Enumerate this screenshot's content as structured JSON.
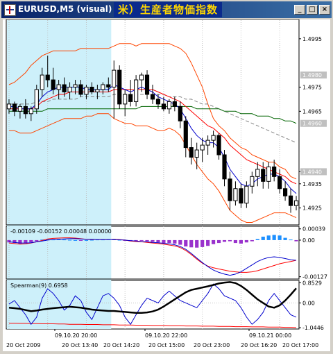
{
  "window": {
    "title": "EURUSD,M5 (visual)",
    "title_banner": "米）生産者物価指数",
    "controls": [
      "_",
      "□",
      "×"
    ]
  },
  "colors": {
    "background": "#ffffff",
    "tester_highlight": "#cdf0fa",
    "grid": "#c0c0c0",
    "candle": "#000000",
    "bollinger_outer": "#ff4500",
    "bollinger_mid": "#b22222",
    "ma_fast": "#0000cd",
    "ma_mid": "#ff0000",
    "ma_slow": "#006400",
    "ma_dash": "#808080",
    "macd_hist_pos": "#1e90ff",
    "macd_hist_neg": "#9932cc",
    "macd_signal_1": "#ff0000",
    "macd_signal_2": "#0000cd",
    "spearman_bold": "#000000",
    "spearman_thin": "#0000cd",
    "spearman_red": "#ff0000"
  },
  "main_chart": {
    "price_labels": [
      "1.4995",
      "1.4975",
      "1.4965",
      "1.4940",
      "1.4935",
      "1.4925"
    ],
    "price_label_values": [
      1.4995,
      1.4975,
      1.4965,
      1.494,
      1.4935,
      1.4925
    ],
    "extra_ticks": [
      {
        "label": "1.4980",
        "value": 1.498,
        "box": true
      },
      {
        "label": "1.4960",
        "value": 1.496,
        "box": true
      },
      {
        "label": "1.4940",
        "value": 1.494,
        "box": true
      }
    ],
    "ylim": [
      1.4918,
      1.5003
    ]
  },
  "chart_data": {
    "type": "candlestick",
    "highlight_bars": [
      0,
      18
    ],
    "candles": [
      {
        "o": 1.4966,
        "h": 1.497,
        "l": 1.4964,
        "c": 1.4968
      },
      {
        "o": 1.4968,
        "h": 1.4969,
        "l": 1.4963,
        "c": 1.4965
      },
      {
        "o": 1.4965,
        "h": 1.4968,
        "l": 1.4962,
        "c": 1.4967
      },
      {
        "o": 1.4967,
        "h": 1.497,
        "l": 1.4962,
        "c": 1.4964
      },
      {
        "o": 1.4964,
        "h": 1.4967,
        "l": 1.4961,
        "c": 1.4966
      },
      {
        "o": 1.4966,
        "h": 1.4976,
        "l": 1.4964,
        "c": 1.4974
      },
      {
        "o": 1.4974,
        "h": 1.4983,
        "l": 1.4971,
        "c": 1.498
      },
      {
        "o": 1.498,
        "h": 1.4988,
        "l": 1.4975,
        "c": 1.4978
      },
      {
        "o": 1.4978,
        "h": 1.4983,
        "l": 1.4972,
        "c": 1.4974
      },
      {
        "o": 1.4974,
        "h": 1.4978,
        "l": 1.497,
        "c": 1.4976
      },
      {
        "o": 1.4976,
        "h": 1.4979,
        "l": 1.4971,
        "c": 1.4973
      },
      {
        "o": 1.4973,
        "h": 1.4977,
        "l": 1.497,
        "c": 1.4975
      },
      {
        "o": 1.4975,
        "h": 1.4978,
        "l": 1.4972,
        "c": 1.4976
      },
      {
        "o": 1.4976,
        "h": 1.4978,
        "l": 1.4971,
        "c": 1.4972
      },
      {
        "o": 1.4972,
        "h": 1.4976,
        "l": 1.497,
        "c": 1.4975
      },
      {
        "o": 1.4975,
        "h": 1.4977,
        "l": 1.4972,
        "c": 1.4973
      },
      {
        "o": 1.4973,
        "h": 1.4976,
        "l": 1.497,
        "c": 1.4974
      },
      {
        "o": 1.4974,
        "h": 1.4977,
        "l": 1.4972,
        "c": 1.4976
      },
      {
        "o": 1.4976,
        "h": 1.4979,
        "l": 1.4973,
        "c": 1.4975
      },
      {
        "o": 1.4975,
        "h": 1.4986,
        "l": 1.4962,
        "c": 1.4982
      },
      {
        "o": 1.4982,
        "h": 1.4984,
        "l": 1.4966,
        "c": 1.4968
      },
      {
        "o": 1.4968,
        "h": 1.4974,
        "l": 1.4963,
        "c": 1.4972
      },
      {
        "o": 1.4972,
        "h": 1.4978,
        "l": 1.4967,
        "c": 1.4969
      },
      {
        "o": 1.4969,
        "h": 1.498,
        "l": 1.4967,
        "c": 1.4978
      },
      {
        "o": 1.4978,
        "h": 1.4981,
        "l": 1.4973,
        "c": 1.498
      },
      {
        "o": 1.498,
        "h": 1.4982,
        "l": 1.497,
        "c": 1.4972
      },
      {
        "o": 1.4972,
        "h": 1.4976,
        "l": 1.4968,
        "c": 1.497
      },
      {
        "o": 1.497,
        "h": 1.4972,
        "l": 1.4966,
        "c": 1.4968
      },
      {
        "o": 1.4968,
        "h": 1.4971,
        "l": 1.4965,
        "c": 1.4966
      },
      {
        "o": 1.4966,
        "h": 1.497,
        "l": 1.4964,
        "c": 1.4969
      },
      {
        "o": 1.4969,
        "h": 1.4971,
        "l": 1.4965,
        "c": 1.4967
      },
      {
        "o": 1.4967,
        "h": 1.4969,
        "l": 1.4958,
        "c": 1.4961
      },
      {
        "o": 1.4961,
        "h": 1.4963,
        "l": 1.4946,
        "c": 1.495
      },
      {
        "o": 1.495,
        "h": 1.4954,
        "l": 1.4943,
        "c": 1.4946
      },
      {
        "o": 1.4946,
        "h": 1.4952,
        "l": 1.4941,
        "c": 1.4949
      },
      {
        "o": 1.4949,
        "h": 1.4954,
        "l": 1.4944,
        "c": 1.4951
      },
      {
        "o": 1.4951,
        "h": 1.4955,
        "l": 1.4947,
        "c": 1.4953
      },
      {
        "o": 1.4953,
        "h": 1.4957,
        "l": 1.495,
        "c": 1.4955
      },
      {
        "o": 1.4955,
        "h": 1.4956,
        "l": 1.4945,
        "c": 1.4947
      },
      {
        "o": 1.4947,
        "h": 1.4949,
        "l": 1.4934,
        "c": 1.4937
      },
      {
        "o": 1.4937,
        "h": 1.494,
        "l": 1.4924,
        "c": 1.4928
      },
      {
        "o": 1.4928,
        "h": 1.4936,
        "l": 1.4926,
        "c": 1.4933
      },
      {
        "o": 1.4933,
        "h": 1.4935,
        "l": 1.4925,
        "c": 1.4927
      },
      {
        "o": 1.4927,
        "h": 1.4936,
        "l": 1.4925,
        "c": 1.4934
      },
      {
        "o": 1.4934,
        "h": 1.494,
        "l": 1.4931,
        "c": 1.4938
      },
      {
        "o": 1.4938,
        "h": 1.4944,
        "l": 1.4934,
        "c": 1.4941
      },
      {
        "o": 1.4941,
        "h": 1.4944,
        "l": 1.4933,
        "c": 1.4936
      },
      {
        "o": 1.4936,
        "h": 1.4944,
        "l": 1.4933,
        "c": 1.4942
      },
      {
        "o": 1.4942,
        "h": 1.4945,
        "l": 1.4936,
        "c": 1.4938
      },
      {
        "o": 1.4938,
        "h": 1.4941,
        "l": 1.4931,
        "c": 1.4933
      },
      {
        "o": 1.4933,
        "h": 1.4936,
        "l": 1.4928,
        "c": 1.493
      },
      {
        "o": 1.493,
        "h": 1.4933,
        "l": 1.4923,
        "c": 1.4926
      },
      {
        "o": 1.4926,
        "h": 1.493,
        "l": 1.4924,
        "c": 1.4928
      }
    ],
    "bollinger": {
      "upper": [
        1.4976,
        1.4977,
        1.4979,
        1.4981,
        1.4984,
        1.4986,
        1.4988,
        1.4989,
        1.499,
        1.499,
        1.499,
        1.499,
        1.499,
        1.4991,
        1.4991,
        1.4991,
        1.4991,
        1.4991,
        1.4991,
        1.4992,
        1.4993,
        1.4993,
        1.4993,
        1.4992,
        1.4993,
        1.4993,
        1.4993,
        1.4993,
        1.4993,
        1.4993,
        1.4992,
        1.4991,
        1.4989,
        1.4985,
        1.498,
        1.4975,
        1.4968,
        1.4962,
        1.4959,
        1.4957,
        1.4954,
        1.4952,
        1.495,
        1.4949,
        1.4947,
        1.4946,
        1.4945,
        1.4944,
        1.4944,
        1.4942,
        1.4941,
        1.4938,
        1.4937
      ],
      "lower": [
        1.4957,
        1.4957,
        1.4956,
        1.4956,
        1.4956,
        1.4957,
        1.4958,
        1.4959,
        1.496,
        1.4961,
        1.4962,
        1.4962,
        1.4962,
        1.4962,
        1.4963,
        1.4963,
        1.4964,
        1.4964,
        1.4964,
        1.4962,
        1.4961,
        1.496,
        1.496,
        1.4959,
        1.4959,
        1.4959,
        1.4958,
        1.4957,
        1.4957,
        1.4958,
        1.4957,
        1.4955,
        1.4951,
        1.4947,
        1.4943,
        1.494,
        1.4937,
        1.4935,
        1.4932,
        1.4928,
        1.4924,
        1.4922,
        1.492,
        1.4919,
        1.4919,
        1.492,
        1.4921,
        1.4922,
        1.4923,
        1.4923,
        1.4923,
        1.4922,
        1.4921
      ]
    },
    "ma": {
      "fast": [
        1.4967,
        1.4967,
        1.4966,
        1.4966,
        1.4966,
        1.4968,
        1.4971,
        1.4973,
        1.4974,
        1.4975,
        1.4975,
        1.4975,
        1.4975,
        1.4975,
        1.4974,
        1.4974,
        1.4974,
        1.4974,
        1.4974,
        1.4976,
        1.4975,
        1.4974,
        1.4973,
        1.4974,
        1.4975,
        1.4974,
        1.4973,
        1.4971,
        1.497,
        1.4969,
        1.4968,
        1.4966,
        1.4962,
        1.4958,
        1.4955,
        1.4953,
        1.4952,
        1.4952,
        1.495,
        1.4946,
        1.4941,
        1.4938,
        1.4935,
        1.4934,
        1.4935,
        1.4937,
        1.4938,
        1.4939,
        1.4939,
        1.4938,
        1.4936,
        1.4933,
        1.4931
      ],
      "mid": [
        1.4966,
        1.4966,
        1.4966,
        1.4966,
        1.4966,
        1.4967,
        1.4969,
        1.497,
        1.4971,
        1.4972,
        1.4972,
        1.4973,
        1.4973,
        1.4973,
        1.4973,
        1.4973,
        1.4973,
        1.4973,
        1.4973,
        1.4974,
        1.4974,
        1.4974,
        1.4974,
        1.4974,
        1.4974,
        1.4974,
        1.4974,
        1.4973,
        1.4972,
        1.4971,
        1.497,
        1.4969,
        1.4967,
        1.4965,
        1.4963,
        1.4961,
        1.4959,
        1.4958,
        1.4956,
        1.4954,
        1.4951,
        1.4949,
        1.4947,
        1.4945,
        1.4944,
        1.4943,
        1.4942,
        1.4941,
        1.494,
        1.4939,
        1.4938,
        1.4936,
        1.4935
      ],
      "slow": [
        1.4965,
        1.4965,
        1.4965,
        1.4965,
        1.4965,
        1.4965,
        1.4965,
        1.4966,
        1.4966,
        1.4966,
        1.4966,
        1.4966,
        1.4966,
        1.4966,
        1.4966,
        1.4966,
        1.4966,
        1.4966,
        1.4966,
        1.4966,
        1.4966,
        1.4966,
        1.4966,
        1.4966,
        1.4967,
        1.4967,
        1.4967,
        1.4967,
        1.4967,
        1.4967,
        1.4967,
        1.4967,
        1.4967,
        1.4967,
        1.4966,
        1.4966,
        1.4966,
        1.4966,
        1.4966,
        1.4965,
        1.4965,
        1.4965,
        1.4964,
        1.4964,
        1.4964,
        1.4963,
        1.4963,
        1.4963,
        1.4962,
        1.4962,
        1.4961,
        1.4961,
        1.496
      ],
      "dash": [
        1.4968,
        1.4968,
        1.4968,
        1.4968,
        1.4968,
        1.4969,
        1.4969,
        1.4969,
        1.497,
        1.497,
        1.497,
        1.497,
        1.497,
        1.4971,
        1.4971,
        1.4971,
        1.4971,
        1.4971,
        1.4971,
        1.4972,
        1.4972,
        1.4972,
        1.4972,
        1.4972,
        1.4972,
        1.4972,
        1.4972,
        1.4972,
        1.4972,
        1.4971,
        1.4971,
        1.4971,
        1.497,
        1.497,
        1.4969,
        1.4968,
        1.4968,
        1.4967,
        1.4966,
        1.4965,
        1.4964,
        1.4963,
        1.4962,
        1.4961,
        1.496,
        1.4959,
        1.4958,
        1.4957,
        1.4956,
        1.4955,
        1.4954,
        1.4953,
        1.4952
      ]
    },
    "macd": {
      "label": "-0.00109 -0.00152 0.00048 0.00000",
      "ticks": [
        {
          "label": "0.00039",
          "value": 0.00039
        },
        {
          "label": "0.00",
          "value": 0.0
        },
        {
          "label": "-0.00127",
          "value": -0.00127
        }
      ],
      "ylim": [
        -0.00135,
        0.00048
      ],
      "hist": [
        -8e-05,
        -0.0001,
        -0.00012,
        -0.0001,
        -8e-05,
        -4e-05,
        2e-05,
        3e-05,
        2e-05,
        3e-05,
        2e-05,
        1e-05,
        0.0,
        -1e-05,
        0.0,
        1e-05,
        2e-05,
        2e-05,
        3e-05,
        4e-05,
        1e-05,
        -2e-05,
        -4e-05,
        -3e-05,
        -2e-05,
        -4e-05,
        -6e-05,
        -8e-05,
        -0.0001,
        -0.0001,
        -0.00012,
        -0.00016,
        -0.00022,
        -0.00025,
        -0.00026,
        -0.00024,
        -0.0002,
        -0.00014,
        -0.0001,
        -6e-05,
        -4e-05,
        -0.0001,
        -0.00012,
        -8e-05,
        -4e-05,
        4e-05,
        0.00012,
        0.00016,
        0.00018,
        0.00016,
        8e-05,
        2e-05,
        -4e-05
      ],
      "signal1": [
        -0.0001,
        -0.00012,
        -0.00014,
        -0.00013,
        -0.0001,
        -6e-05,
        -1e-05,
        4e-05,
        6e-05,
        7e-05,
        8e-05,
        8e-05,
        7e-05,
        5e-05,
        3e-05,
        2e-05,
        2e-05,
        2e-05,
        2e-05,
        3e-05,
        2e-05,
        0.0,
        -3e-05,
        -5e-05,
        -6e-05,
        -8e-05,
        -0.0001,
        -0.00012,
        -0.00014,
        -0.00017,
        -0.0002,
        -0.00026,
        -0.00036,
        -0.0005,
        -0.00066,
        -0.0008,
        -0.0009,
        -0.00096,
        -0.001,
        -0.00104,
        -0.00108,
        -0.0011,
        -0.00112,
        -0.00112,
        -0.0011,
        -0.00106,
        -0.001,
        -0.00094,
        -0.00088,
        -0.00082,
        -0.00078,
        -0.00074,
        -0.0007
      ],
      "signal2": [
        -6e-05,
        -8e-05,
        -0.0001,
        -0.0001,
        -9e-05,
        -6e-05,
        -3e-05,
        0.0,
        2e-05,
        3e-05,
        4e-05,
        5e-05,
        5e-05,
        4e-05,
        3e-05,
        3e-05,
        2e-05,
        2e-05,
        2e-05,
        2e-05,
        1e-05,
        0.0,
        -2e-05,
        -3e-05,
        -5e-05,
        -6e-05,
        -8e-05,
        -9e-05,
        -0.00011,
        -0.00013,
        -0.00016,
        -0.00022,
        -0.00032,
        -0.00046,
        -0.00062,
        -0.00078,
        -0.00092,
        -0.00104,
        -0.00112,
        -0.00118,
        -0.00122,
        -0.00118,
        -0.0011,
        -0.00098,
        -0.00086,
        -0.00074,
        -0.00066,
        -0.0006,
        -0.00058,
        -0.0006,
        -0.00064,
        -0.00068,
        -0.0007
      ]
    },
    "spearman": {
      "label": "Spearman(9) 0.6958",
      "ticks": [
        {
          "label": "0.8529",
          "value": 0.8529
        },
        {
          "label": "0.00",
          "value": 0.0
        },
        {
          "label": "-1.0446",
          "value": -1.0446
        }
      ],
      "ylim": [
        -1.1,
        0.95
      ],
      "bold": [
        -0.2,
        -0.22,
        -0.25,
        -0.3,
        -0.35,
        -0.32,
        -0.28,
        -0.25,
        -0.22,
        -0.2,
        -0.18,
        -0.16,
        -0.18,
        -0.2,
        -0.24,
        -0.28,
        -0.3,
        -0.32,
        -0.34,
        -0.34,
        -0.36,
        -0.38,
        -0.4,
        -0.42,
        -0.42,
        -0.4,
        -0.36,
        -0.28,
        -0.15,
        0.0,
        0.15,
        0.3,
        0.45,
        0.55,
        0.6,
        0.65,
        0.7,
        0.76,
        0.82,
        0.86,
        0.88,
        0.84,
        0.72,
        0.55,
        0.35,
        0.15,
        0.0,
        -0.15,
        -0.2,
        -0.1,
        0.1,
        0.35,
        0.62
      ],
      "thin": [
        -0.05,
        0.1,
        -0.2,
        -0.5,
        -0.9,
        -0.6,
        0.2,
        0.6,
        0.4,
        0.1,
        -0.3,
        -0.1,
        0.3,
        0.1,
        -0.4,
        -0.7,
        -0.2,
        0.3,
        0.4,
        0.2,
        -0.1,
        -0.6,
        -0.9,
        -0.5,
        -0.1,
        0.2,
        0.1,
        0.0,
        0.3,
        0.5,
        0.3,
        0.1,
        0.0,
        -0.1,
        -0.2,
        0.1,
        0.4,
        0.8,
        0.6,
        0.3,
        0.2,
        0.1,
        -0.2,
        -0.6,
        -0.9,
        -0.7,
        -0.4,
        0.1,
        0.4,
        0.1,
        -0.2,
        -0.5,
        -0.6
      ],
      "red": [
        -0.85,
        -0.85,
        -0.86,
        -0.86,
        -0.87,
        -0.87,
        -0.88,
        -0.88,
        -0.88,
        -0.89,
        -0.89,
        -0.9,
        -0.9,
        -0.9,
        -0.91,
        -0.91,
        -0.91,
        -0.92,
        -0.92,
        -0.92,
        -0.93,
        -0.93,
        -0.93,
        -0.94,
        -0.94,
        -0.94,
        -0.95,
        -0.95,
        -0.95,
        -0.96,
        -0.96,
        -0.96,
        -0.97,
        -0.97,
        -0.97,
        -0.98,
        -0.98,
        -0.98,
        -0.99,
        -0.99,
        -0.99,
        -1.0,
        -1.0,
        -1.0,
        -1.01,
        -1.01,
        -1.01,
        -1.02,
        -1.02,
        -1.02,
        -1.03,
        -1.03,
        -1.04
      ]
    },
    "time_axis": {
      "top_row": [
        "09.10.20 20:00",
        "09.10.20 22:00",
        "09.10.21 00:00"
      ],
      "top_row_positions": [
        70,
        200,
        350
      ],
      "bottom_row": [
        "20 Oct 2009",
        "20 Oct 13:40",
        "20 Oct 14:20",
        "20 Oct 15:00",
        "20 Oct 23:00",
        "20 Oct 16:20",
        "20 Oct 17:00"
      ],
      "bottom_row_positions": [
        0,
        80,
        140,
        205,
        270,
        338,
        398
      ]
    }
  }
}
